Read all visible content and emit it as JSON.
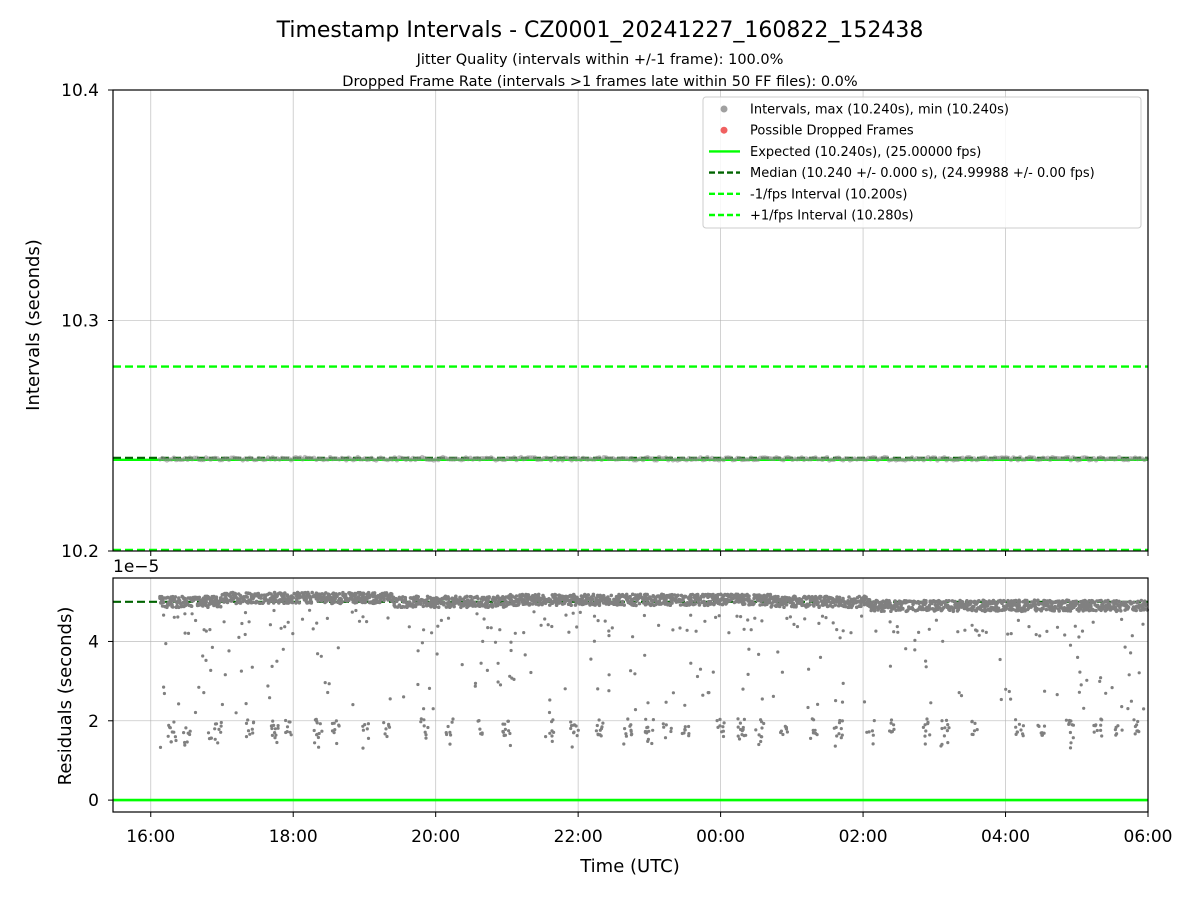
{
  "chart_data": {
    "type": "scatter",
    "title": "Timestamp Intervals - CZ0001_20241227_160822_152438",
    "subtitle_1": "Jitter Quality (intervals within +/-1 frame): 100.0%",
    "subtitle_2": "Dropped Frame Rate (intervals >1 frames late within 50 FF files): 0.0%",
    "xlabel": "Time (UTC)",
    "x_ticks": [
      "16:00",
      "18:00",
      "20:00",
      "22:00",
      "00:00",
      "02:00",
      "04:00",
      "06:00"
    ],
    "x_tick_hours": [
      16,
      18,
      20,
      22,
      24,
      26,
      28,
      30
    ],
    "xlim_hours": [
      15.47,
      30.0
    ],
    "data_start_hour": 16.13,
    "data_end_hour": 30.0,
    "top_panel": {
      "ylabel": "Intervals (seconds)",
      "ylim": [
        10.2,
        10.4
      ],
      "y_ticks": [
        "10.2",
        "10.3",
        "10.4"
      ],
      "y_tick_values": [
        10.2,
        10.3,
        10.4
      ],
      "interval_value": 10.24,
      "expected": 10.24,
      "median": 10.24,
      "minus_one_frame": 10.2,
      "plus_one_frame": 10.28,
      "grid": true,
      "legend_position": "upper right",
      "legend": [
        "Intervals, max (10.240s), min (10.240s)",
        "Possible Dropped Frames",
        "Expected (10.240s), (25.00000 fps)",
        "Median (10.240 +/- 0.000 s), (24.99988 +/- 0.00 fps)",
        "-1/fps Interval (10.200s)",
        "+1/fps Interval (10.280s)"
      ]
    },
    "bottom_panel": {
      "ylabel": "Residuals (seconds)",
      "offset_text": "1e−5",
      "ylim": [
        -0.3,
        5.6
      ],
      "y_ticks": [
        "0",
        "2",
        "4"
      ],
      "y_tick_values": [
        0,
        2,
        4
      ],
      "median_residual": 5.0,
      "zero_line": 0,
      "grid": true,
      "upper_cluster_levels": [
        {
          "from": 16.13,
          "to": 17.0,
          "value": 5.0
        },
        {
          "from": 17.0,
          "to": 19.4,
          "value": 5.1
        },
        {
          "from": 19.4,
          "to": 21.0,
          "value": 5.0
        },
        {
          "from": 21.0,
          "to": 24.7,
          "value": 5.05
        },
        {
          "from": 24.7,
          "to": 26.1,
          "value": 5.0
        },
        {
          "from": 26.1,
          "to": 30.0,
          "value": 4.9
        }
      ],
      "lower_cluster_times": [
        16.3,
        16.5,
        16.95,
        17.4,
        17.75,
        17.95,
        18.35,
        18.6,
        19.0,
        19.3,
        19.85,
        20.2,
        20.6,
        21.0,
        21.6,
        21.95,
        22.3,
        22.7,
        23.0,
        23.25,
        23.5,
        24.0,
        24.3,
        24.55,
        24.9,
        25.3,
        25.65,
        26.1,
        26.4,
        26.9,
        27.15,
        27.55,
        28.2,
        28.5,
        28.9,
        29.3,
        29.6,
        29.85
      ]
    }
  }
}
